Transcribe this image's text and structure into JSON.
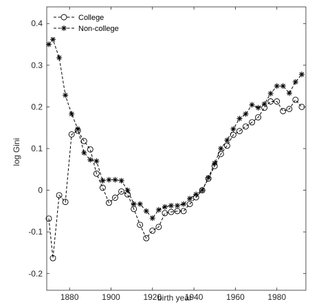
{
  "chart_data": {
    "type": "line",
    "title": "",
    "xlabel": "birth year",
    "ylabel": "log Gini",
    "xlim": [
      1869,
      1994
    ],
    "ylim": [
      -0.24,
      0.44
    ],
    "xticks": [
      1880,
      1900,
      1920,
      1940,
      1960,
      1980
    ],
    "xtick_labels": [
      "1880",
      "1900",
      "1920",
      "1940",
      "1960",
      "1980"
    ],
    "yticks": [
      0.4,
      0.3,
      0.2,
      0.1,
      0,
      -0.1,
      -0.2
    ],
    "ytick_labels": [
      "0.4",
      "0.3",
      "0.2",
      "0.1",
      "0",
      "-0.1",
      "-0.2"
    ],
    "grid": false,
    "legend_position": "top-left",
    "series": [
      {
        "name": "College",
        "marker": "circle",
        "line_style": "dashed",
        "color": "#000000",
        "x": [
          1870,
          1872,
          1875,
          1878,
          1881,
          1884,
          1887,
          1890,
          1893,
          1896,
          1899,
          1902,
          1905,
          1908,
          1911,
          1914,
          1917,
          1920,
          1923,
          1926,
          1929,
          1932,
          1935,
          1938,
          1941,
          1944,
          1947,
          1950,
          1953,
          1956,
          1959,
          1962,
          1965,
          1968,
          1971,
          1974,
          1977,
          1980,
          1983,
          1986,
          1989,
          1992
        ],
        "y": [
          -0.068,
          -0.163,
          -0.012,
          -0.028,
          0.134,
          0.143,
          0.118,
          0.098,
          0.04,
          0.006,
          -0.03,
          -0.018,
          -0.003,
          -0.01,
          -0.045,
          -0.083,
          -0.115,
          -0.097,
          -0.088,
          -0.055,
          -0.052,
          -0.05,
          -0.05,
          -0.033,
          -0.017,
          0.0,
          0.028,
          0.058,
          0.087,
          0.107,
          0.133,
          0.142,
          0.153,
          0.163,
          0.175,
          0.198,
          0.213,
          0.213,
          0.19,
          0.195,
          0.217,
          0.2
        ]
      },
      {
        "name": "Non-college",
        "marker": "asterisk",
        "line_style": "dashed",
        "color": "#000000",
        "x": [
          1870,
          1872,
          1875,
          1878,
          1881,
          1884,
          1887,
          1890,
          1893,
          1896,
          1899,
          1902,
          1905,
          1908,
          1911,
          1914,
          1917,
          1920,
          1923,
          1926,
          1929,
          1932,
          1935,
          1938,
          1941,
          1944,
          1947,
          1950,
          1953,
          1956,
          1959,
          1962,
          1965,
          1968,
          1971,
          1974,
          1977,
          1980,
          1983,
          1986,
          1989,
          1992
        ],
        "y": [
          0.35,
          0.362,
          0.318,
          0.228,
          0.183,
          0.147,
          0.09,
          0.073,
          0.07,
          0.023,
          0.025,
          0.025,
          0.023,
          0.0,
          -0.033,
          -0.033,
          -0.05,
          -0.067,
          -0.047,
          -0.04,
          -0.037,
          -0.037,
          -0.033,
          -0.02,
          -0.01,
          0.0,
          0.03,
          0.065,
          0.1,
          0.12,
          0.147,
          0.172,
          0.183,
          0.205,
          0.198,
          0.207,
          0.232,
          0.25,
          0.25,
          0.233,
          0.26,
          0.278
        ]
      }
    ]
  }
}
